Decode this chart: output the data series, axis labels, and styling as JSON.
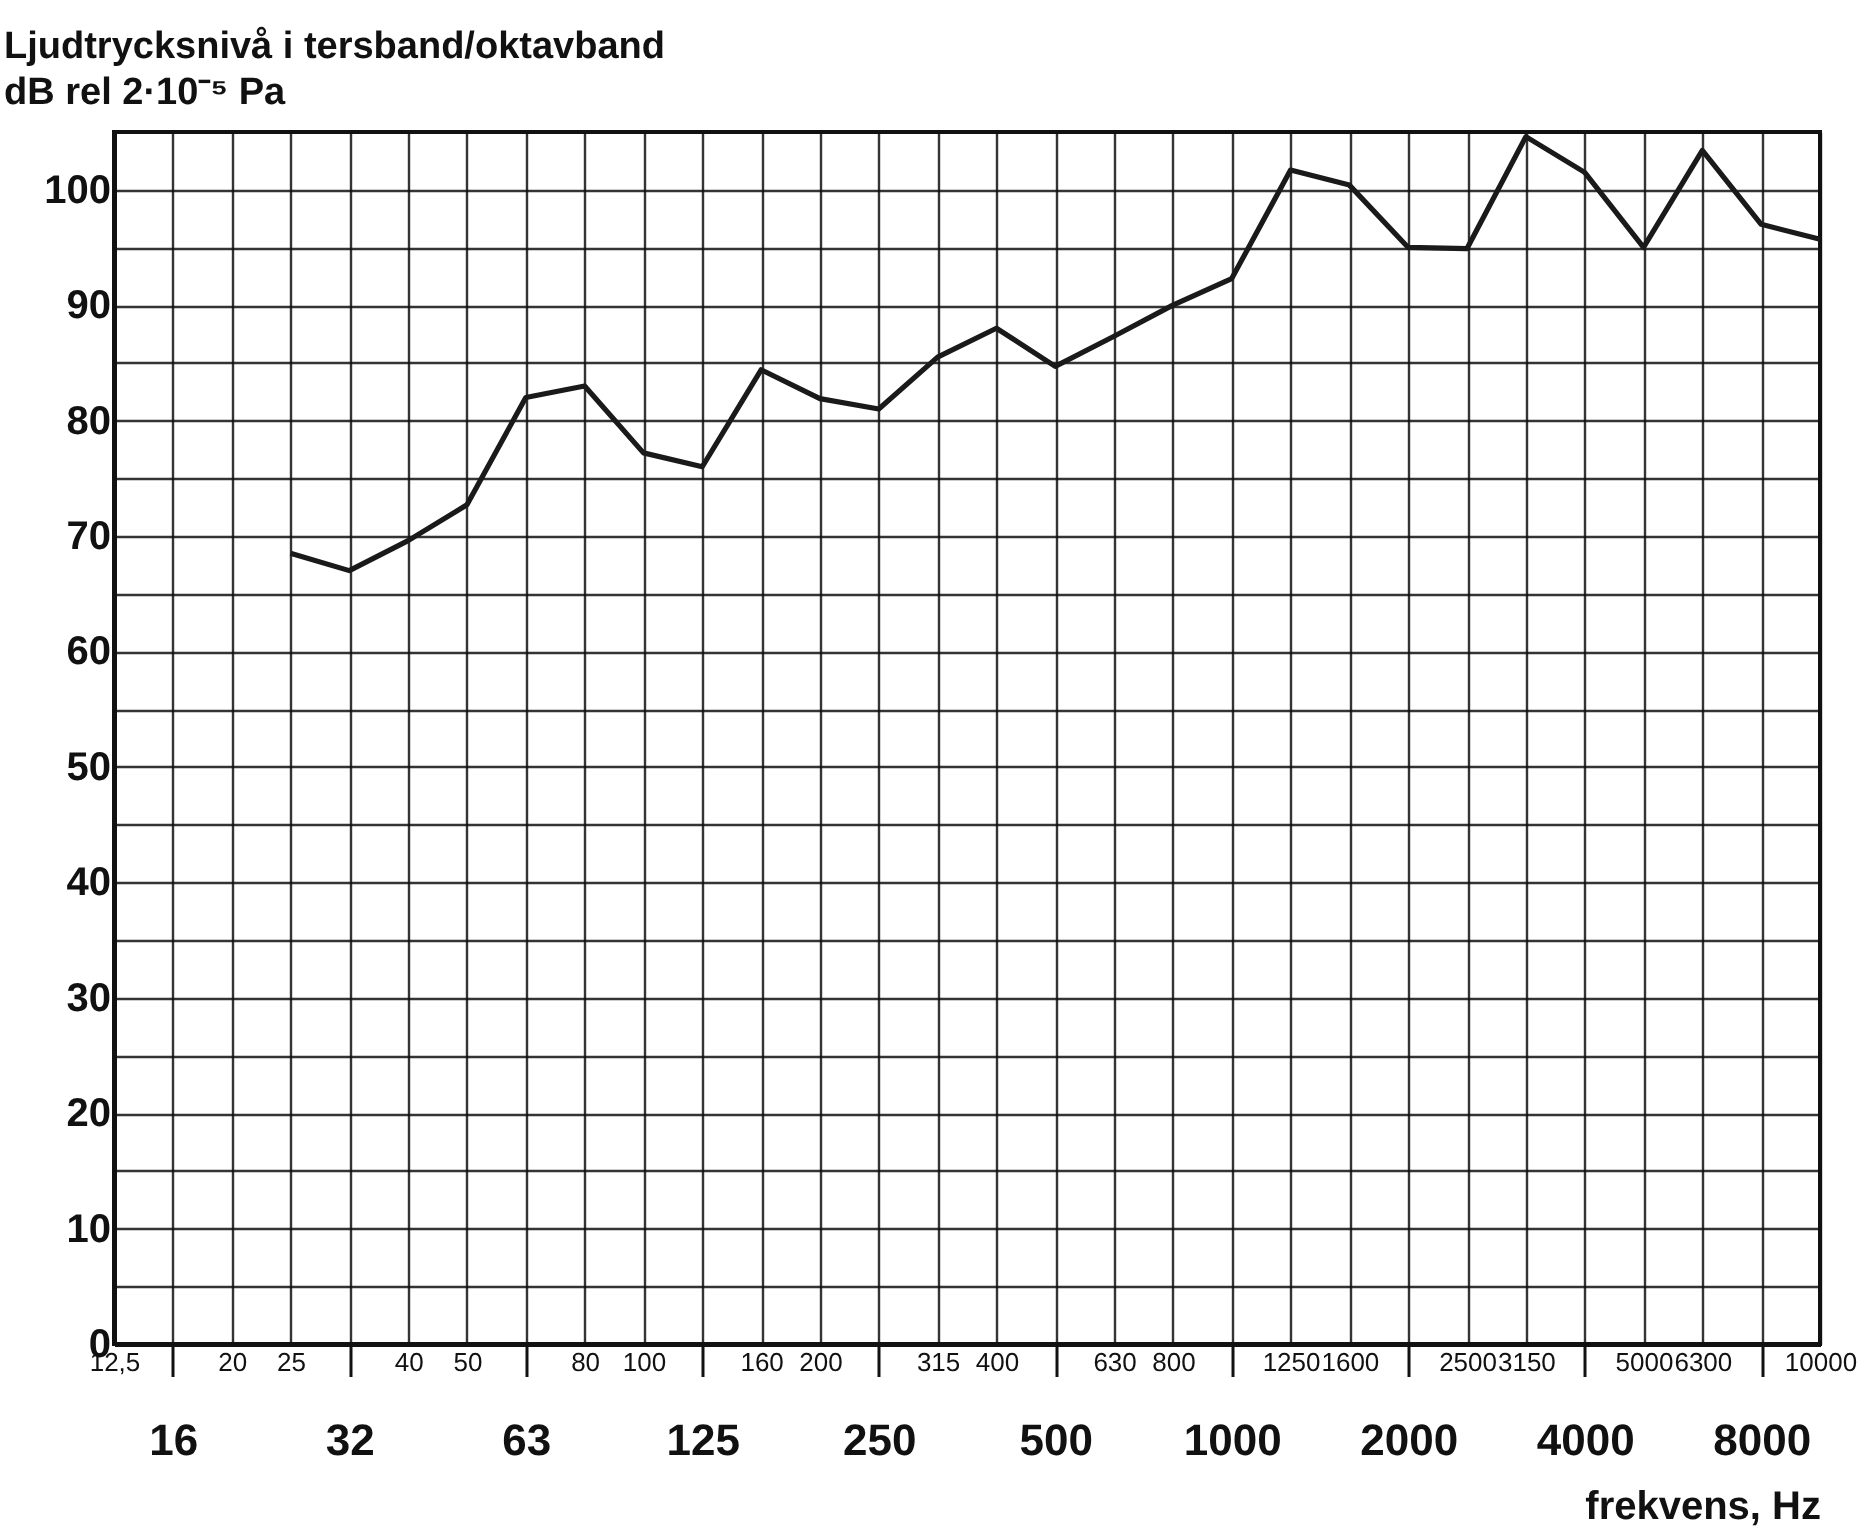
{
  "chart_data": {
    "type": "line",
    "title": "Ljudtrycksnivå i tersband/oktavband",
    "ylabel": "dB rel 2·10⁻⁵ Pa",
    "xlabel": "frekvens, Hz",
    "categories": [
      "12,5",
      "16",
      "20",
      "25",
      "32",
      "40",
      "50",
      "63",
      "80",
      "100",
      "125",
      "160",
      "200",
      "250",
      "315",
      "400",
      "500",
      "630",
      "800",
      "1000",
      "1250",
      "1600",
      "2000",
      "2500",
      "3150",
      "4000",
      "5000",
      "6300",
      "8000",
      "10000"
    ],
    "series": [
      {
        "color": "#1a1a1a",
        "values": [
          null,
          null,
          null,
          68.5,
          67,
          69.6,
          72.7,
          82,
          83,
          77.2,
          76,
          84.4,
          81.9,
          81,
          85.5,
          88,
          84.7,
          87.3,
          90,
          92.3,
          101.7,
          100.4,
          95,
          94.9,
          104.6,
          101.5,
          95,
          103.4,
          97,
          95.7
        ]
      }
    ],
    "ylim": [
      0,
      105
    ],
    "yticks": [
      0,
      {
        "value": 5,
        "label": null
      },
      10,
      {
        "value": 15,
        "label": null
      },
      20,
      {
        "value": 25,
        "label": null
      },
      30,
      {
        "value": 35,
        "label": null
      },
      40,
      {
        "value": 45,
        "label": null
      },
      50,
      {
        "value": 55,
        "label": null
      },
      60,
      {
        "value": 65,
        "label": null
      },
      70,
      {
        "value": 75,
        "label": null
      },
      80,
      {
        "value": 85,
        "label": null
      },
      90,
      {
        "value": 95,
        "label": null
      },
      100
    ],
    "grid": true,
    "marker": "none",
    "line_style": "solid"
  }
}
